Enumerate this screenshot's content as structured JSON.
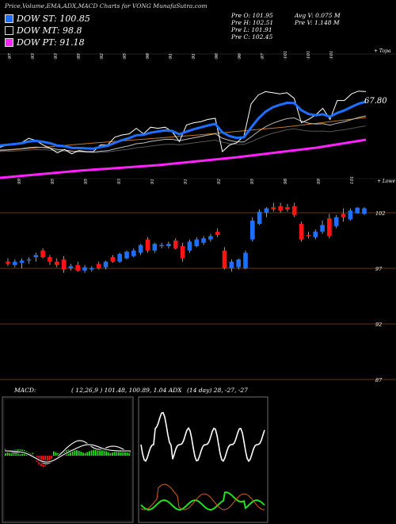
{
  "header": {
    "title": "Price,Volume,EMA,ADX,MACD Charts for VONG MunafaSutra.com"
  },
  "legend": [
    {
      "label": "DOW ST: 100.85",
      "color": "#1e6fff"
    },
    {
      "label": "DOW MT: 98.8",
      "color": "#000000"
    },
    {
      "label": "DOW PT: 91.18",
      "color": "#ff22ff"
    }
  ],
  "stats": {
    "col1": [
      "Pre  O: 101.95",
      "Pre  H: 102.51",
      "Pre  L: 101.91",
      "Pre  C: 102.45"
    ],
    "col2": [
      "Avg V: 0.075 M",
      "Pre  V: 1.148 M"
    ]
  },
  "ema_panel": {
    "label": "67.80",
    "top_right": "+ Topa",
    "top_tags": [
      "97",
      "93",
      "93",
      "95",
      "92",
      "95",
      "98",
      "91",
      "91",
      "96",
      "96",
      "97",
      "101",
      "101",
      "101"
    ],
    "bottom_tags": [
      "99",
      "95",
      "95",
      "93",
      "91",
      "91",
      "92",
      "95",
      "98",
      "99",
      "101"
    ]
  },
  "price_panel": {
    "top_right": "+ Lowe",
    "levels": [
      {
        "label": "102",
        "value": 102
      },
      {
        "label": "97",
        "value": 97
      },
      {
        "label": "92",
        "value": 92
      },
      {
        "label": "87",
        "value": 87
      }
    ]
  },
  "indicators": {
    "macd_label": "MACD:",
    "macd_values": "( 12,26,9 ) 101.48,  100.89,  1.04 ADX",
    "adx_values": "(14  day) 28,  -27,  -27"
  },
  "chart_data": {
    "type": "candlestick",
    "title": "Price,Volume,EMA,ADX,MACD Charts for VONG MunafaSutra.com",
    "ylim": [
      86,
      104
    ],
    "candles": [
      {
        "o": 97.6,
        "h": 97.9,
        "l": 97.2,
        "c": 97.4
      },
      {
        "o": 97.3,
        "h": 97.8,
        "l": 97.1,
        "c": 97.6
      },
      {
        "o": 97.5,
        "h": 97.9,
        "l": 97.0,
        "c": 97.7
      },
      {
        "o": 97.7,
        "h": 98.0,
        "l": 97.4,
        "c": 97.8
      },
      {
        "o": 98.0,
        "h": 98.4,
        "l": 97.6,
        "c": 98.2
      },
      {
        "o": 98.6,
        "h": 98.8,
        "l": 97.9,
        "c": 98.0
      },
      {
        "o": 98.0,
        "h": 98.2,
        "l": 97.3,
        "c": 97.6
      },
      {
        "o": 97.6,
        "h": 97.9,
        "l": 97.1,
        "c": 97.3
      },
      {
        "o": 97.8,
        "h": 98.1,
        "l": 96.6,
        "c": 96.9
      },
      {
        "o": 97.0,
        "h": 97.4,
        "l": 96.8,
        "c": 97.2
      },
      {
        "o": 97.3,
        "h": 97.6,
        "l": 96.7,
        "c": 96.8
      },
      {
        "o": 96.8,
        "h": 97.3,
        "l": 96.6,
        "c": 97.1
      },
      {
        "o": 96.9,
        "h": 97.2,
        "l": 96.7,
        "c": 97.0
      },
      {
        "o": 97.4,
        "h": 97.6,
        "l": 96.9,
        "c": 97.0
      },
      {
        "o": 97.1,
        "h": 97.7,
        "l": 96.9,
        "c": 97.6
      },
      {
        "o": 98.0,
        "h": 98.2,
        "l": 97.5,
        "c": 97.6
      },
      {
        "o": 97.6,
        "h": 98.4,
        "l": 97.5,
        "c": 98.3
      },
      {
        "o": 97.9,
        "h": 98.6,
        "l": 97.8,
        "c": 98.5
      },
      {
        "o": 98.1,
        "h": 98.8,
        "l": 98.0,
        "c": 98.6
      },
      {
        "o": 98.4,
        "h": 99.2,
        "l": 98.2,
        "c": 99.1
      },
      {
        "o": 99.6,
        "h": 99.8,
        "l": 98.4,
        "c": 98.6
      },
      {
        "o": 98.6,
        "h": 99.3,
        "l": 98.4,
        "c": 99.2
      },
      {
        "o": 99.0,
        "h": 99.3,
        "l": 98.8,
        "c": 99.1
      },
      {
        "o": 99.0,
        "h": 99.4,
        "l": 98.8,
        "c": 99.2
      },
      {
        "o": 99.5,
        "h": 99.7,
        "l": 98.7,
        "c": 98.8
      },
      {
        "o": 99.0,
        "h": 99.3,
        "l": 97.6,
        "c": 97.9
      },
      {
        "o": 98.6,
        "h": 99.6,
        "l": 98.4,
        "c": 99.4
      },
      {
        "o": 99.0,
        "h": 99.8,
        "l": 98.9,
        "c": 99.6
      },
      {
        "o": 99.3,
        "h": 99.9,
        "l": 99.1,
        "c": 99.7
      },
      {
        "o": 99.6,
        "h": 100.1,
        "l": 99.4,
        "c": 99.9
      },
      {
        "o": 100.3,
        "h": 100.6,
        "l": 99.8,
        "c": 100.0
      },
      {
        "o": 98.6,
        "h": 98.9,
        "l": 96.9,
        "c": 97.0
      },
      {
        "o": 97.0,
        "h": 97.8,
        "l": 96.7,
        "c": 97.6
      },
      {
        "o": 97.1,
        "h": 97.9,
        "l": 96.9,
        "c": 97.8
      },
      {
        "o": 97.0,
        "h": 98.6,
        "l": 96.9,
        "c": 98.4
      },
      {
        "o": 99.6,
        "h": 101.6,
        "l": 99.4,
        "c": 101.3
      },
      {
        "o": 101.0,
        "h": 102.3,
        "l": 100.9,
        "c": 102.1
      },
      {
        "o": 102.0,
        "h": 102.5,
        "l": 101.6,
        "c": 102.4
      },
      {
        "o": 102.5,
        "h": 102.9,
        "l": 102.1,
        "c": 102.3
      },
      {
        "o": 102.6,
        "h": 102.9,
        "l": 102.0,
        "c": 102.2
      },
      {
        "o": 102.5,
        "h": 102.8,
        "l": 102.1,
        "c": 102.3
      },
      {
        "o": 102.6,
        "h": 102.9,
        "l": 101.6,
        "c": 101.8
      },
      {
        "o": 101.0,
        "h": 101.2,
        "l": 99.4,
        "c": 99.6
      },
      {
        "o": 100.0,
        "h": 100.3,
        "l": 99.7,
        "c": 99.9
      },
      {
        "o": 99.8,
        "h": 100.5,
        "l": 99.6,
        "c": 100.3
      },
      {
        "o": 100.3,
        "h": 101.3,
        "l": 100.1,
        "c": 100.9
      },
      {
        "o": 101.5,
        "h": 101.9,
        "l": 99.7,
        "c": 99.9
      },
      {
        "o": 100.8,
        "h": 101.8,
        "l": 100.6,
        "c": 101.6
      },
      {
        "o": 101.9,
        "h": 102.4,
        "l": 101.2,
        "c": 101.6
      },
      {
        "o": 101.4,
        "h": 102.4,
        "l": 101.3,
        "c": 102.2
      },
      {
        "o": 101.95,
        "h": 102.51,
        "l": 101.91,
        "c": 102.45
      },
      {
        "o": 101.9,
        "h": 102.5,
        "l": 101.8,
        "c": 102.4
      }
    ]
  }
}
